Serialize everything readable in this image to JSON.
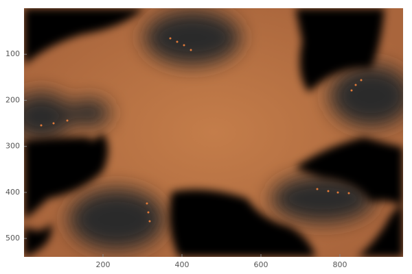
{
  "chart_data": {
    "type": "image",
    "xlim": [
      0,
      960
    ],
    "xticks": [
      200,
      400,
      600,
      800
    ],
    "ylim": [
      540,
      0
    ],
    "yticks": [
      100,
      200,
      300,
      400,
      500
    ]
  }
}
